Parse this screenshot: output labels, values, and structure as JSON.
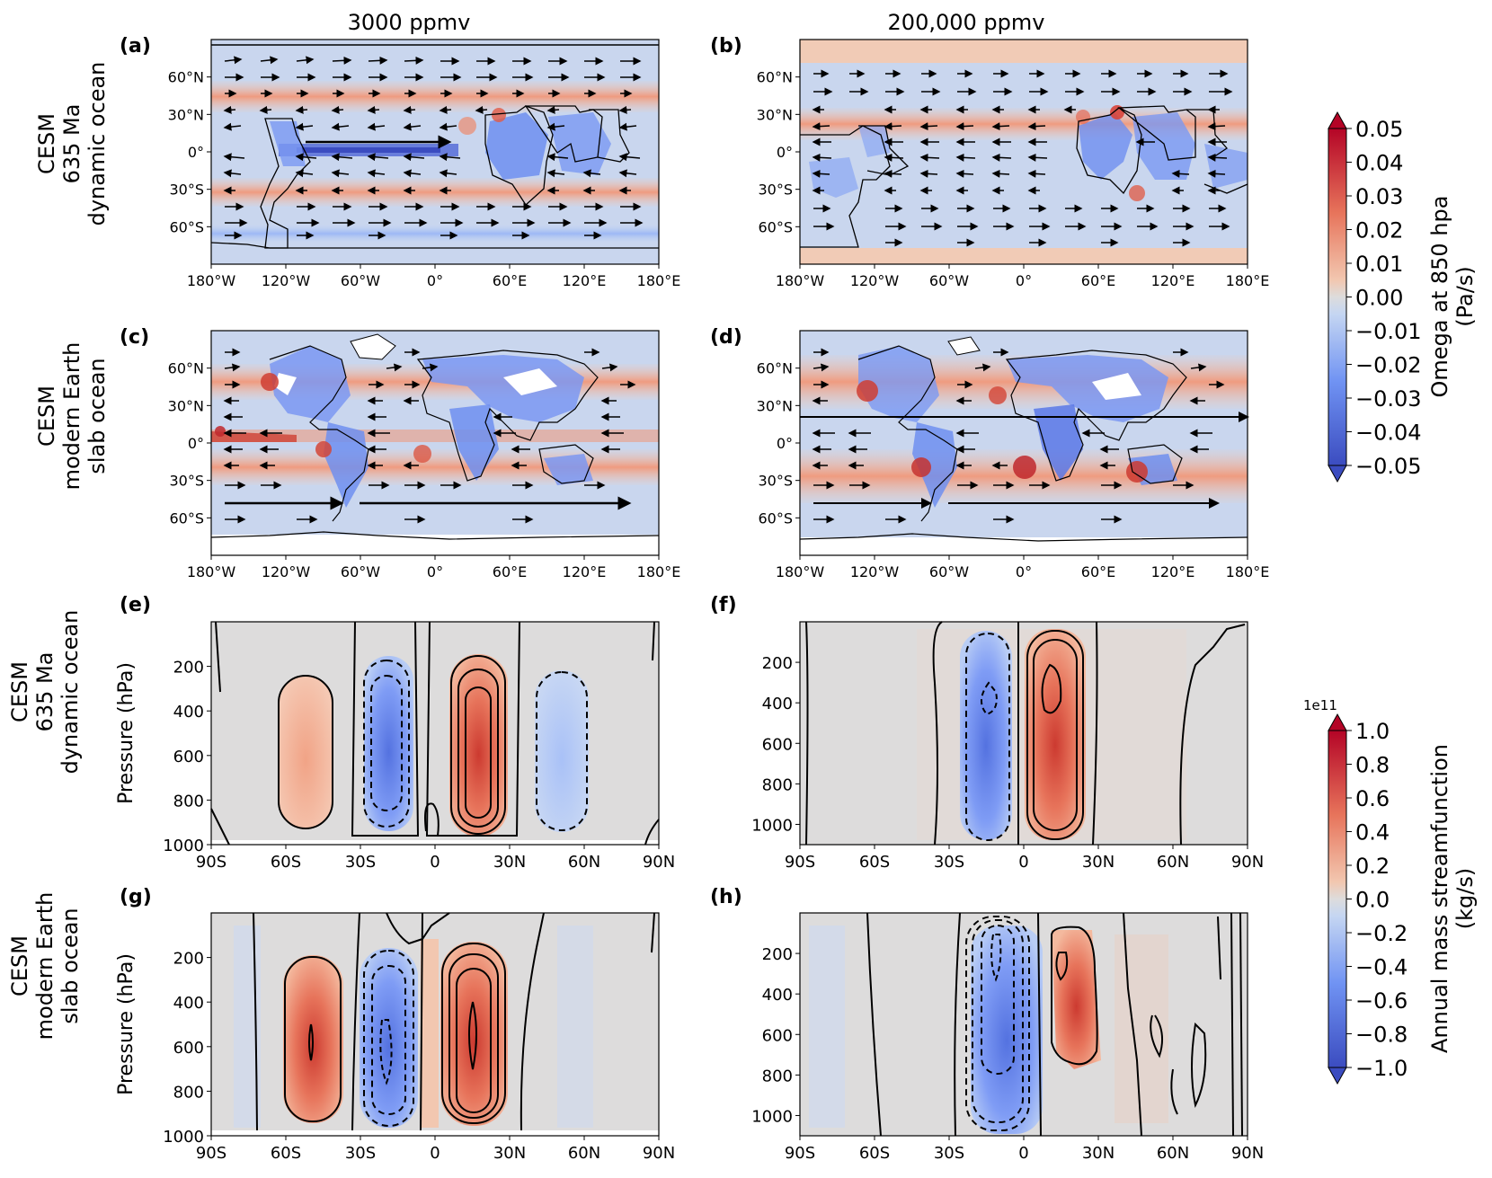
{
  "columns": [
    "3000 ppmv",
    "200,000 ppmv"
  ],
  "rows": [
    {
      "lines": [
        "CESM",
        "635 Ma",
        "dynamic ocean"
      ]
    },
    {
      "lines": [
        "CESM",
        "modern Earth",
        "slab ocean"
      ]
    },
    {
      "lines": [
        "CESM",
        "635 Ma",
        "dynamic ocean"
      ]
    },
    {
      "lines": [
        "CESM",
        "modern Earth",
        "slab ocean"
      ]
    }
  ],
  "panels": [
    "(a)",
    "(b)",
    "(c)",
    "(d)",
    "(e)",
    "(f)",
    "(g)",
    "(h)"
  ],
  "colors": {
    "strong_red": "#b40426",
    "red": "#e7745b",
    "light_red": "#f2c7b0",
    "neutral": "#dddcdc",
    "light_blue": "#c5d6f2",
    "blue": "#7093f3",
    "strong_blue": "#3b4cc0"
  },
  "chart_data": [
    {
      "type": "map",
      "panels": [
        "(a)",
        "(b)",
        "(c)",
        "(d)"
      ],
      "field": "Omega at 850 hpa (Pa/s)",
      "xlabels": [
        "180°W",
        "120°W",
        "60°W",
        "0°",
        "60°E",
        "120°E",
        "180°E"
      ],
      "ylabels": [
        "60°N",
        "30°N",
        "0°",
        "30°S",
        "60°S"
      ],
      "colorbar": {
        "label": [
          "Omega at 850 hpa",
          "(Pa/s)"
        ],
        "ticks": [
          "0.05",
          "0.04",
          "0.03",
          "0.02",
          "0.01",
          "0.00",
          "−0.01",
          "−0.02",
          "−0.03",
          "−0.04",
          "−0.05"
        ],
        "range": [
          -0.05,
          0.05
        ]
      }
    },
    {
      "type": "heatmap",
      "panels": [
        "(e)",
        "(f)",
        "(g)",
        "(h)"
      ],
      "field": "Annual mass streamfunction (kg/s)",
      "xlabels": [
        "90S",
        "60S",
        "30S",
        "0",
        "30N",
        "60N",
        "90N"
      ],
      "ylabel": "Pressure (hPa)",
      "yticks_left": [
        "200",
        "400",
        "600",
        "800",
        "1000"
      ],
      "yticks_right": [
        "200",
        "400",
        "600",
        "800",
        "1000"
      ],
      "colorbar": {
        "label": [
          "Annual mass streamfunction",
          "(kg/s)"
        ],
        "scale": "1e11",
        "ticks": [
          "1.0",
          "0.8",
          "0.6",
          "0.4",
          "0.2",
          "0.0",
          "−0.2",
          "−0.4",
          "−0.6",
          "−0.8",
          "−1.0"
        ],
        "range": [
          -1.0,
          1.0
        ]
      }
    }
  ]
}
